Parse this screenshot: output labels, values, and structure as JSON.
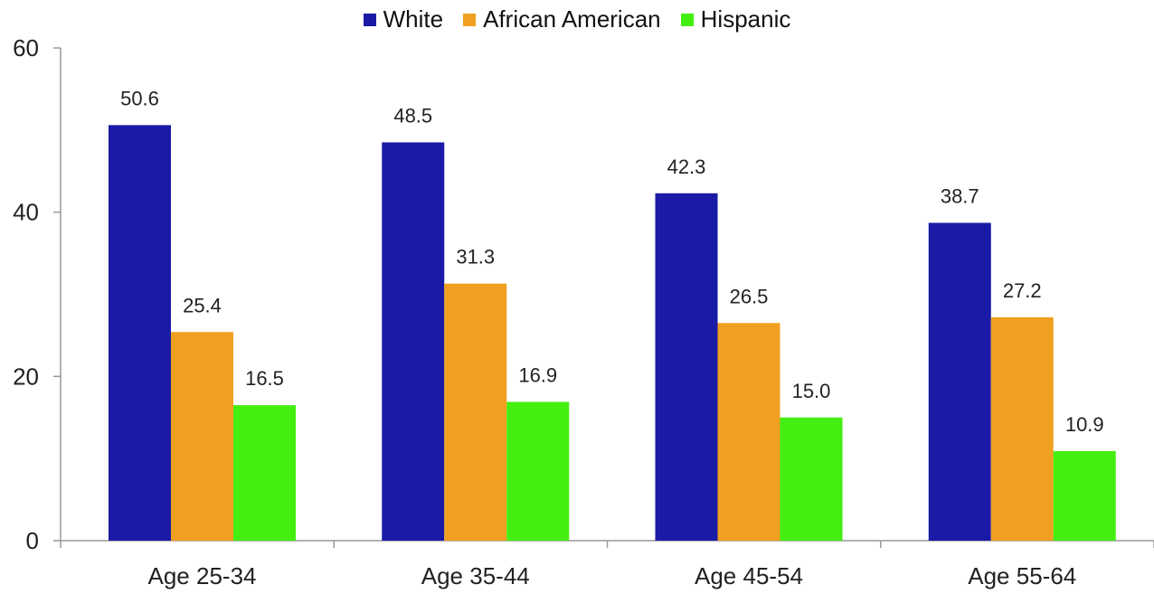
{
  "chart_data": {
    "type": "bar",
    "title": "",
    "xlabel": "",
    "ylabel": "",
    "ylim": [
      0,
      60
    ],
    "yticks": [
      0,
      20,
      40,
      60
    ],
    "grid": false,
    "legend_position": "top-center",
    "categories": [
      "Age 25-34",
      "Age 35-44",
      "Age 45-54",
      "Age 55-64"
    ],
    "series": [
      {
        "name": "White",
        "color": "#1a1aa6",
        "values": [
          50.6,
          48.5,
          42.3,
          38.7
        ],
        "labels": [
          "50.6",
          "48.5",
          "42.3",
          "38.7"
        ]
      },
      {
        "name": "African American",
        "color": "#f0a020",
        "values": [
          25.4,
          31.3,
          26.5,
          27.2
        ],
        "labels": [
          "25.4",
          "31.3",
          "26.5",
          "27.2"
        ]
      },
      {
        "name": "Hispanic",
        "color": "#44ee11",
        "values": [
          16.5,
          16.9,
          15.0,
          10.9
        ],
        "labels": [
          "16.5",
          "16.9",
          "15.0",
          "10.9"
        ]
      }
    ]
  }
}
